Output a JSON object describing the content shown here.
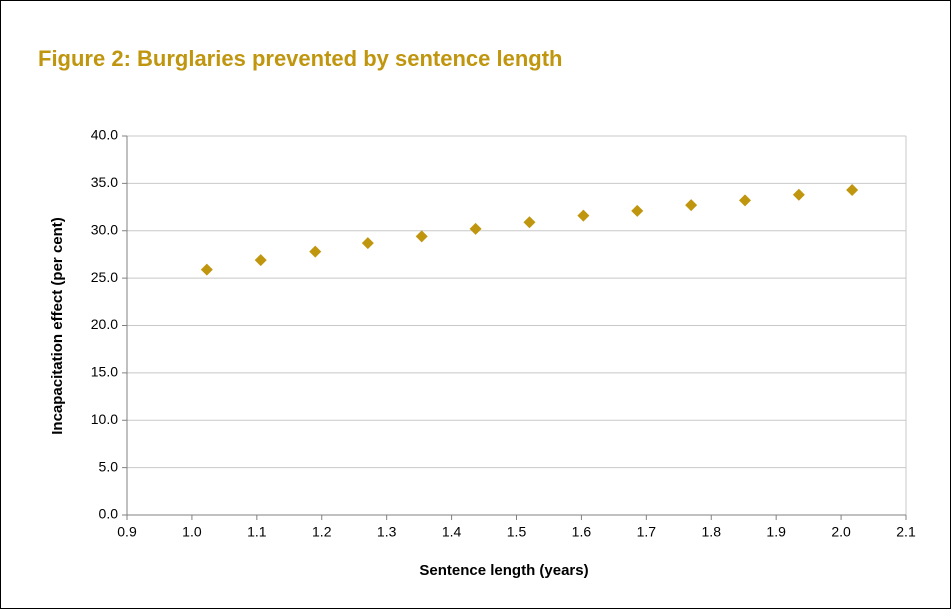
{
  "chart_data": {
    "type": "scatter",
    "title": "Figure 2: Burglaries prevented by sentence length",
    "x_label": "Sentence length (years)",
    "y_label": "Incapacitation effect (per cent)",
    "color": "#c0960f",
    "grid": true,
    "x": [
      1.023,
      1.106,
      1.19,
      1.271,
      1.354,
      1.437,
      1.52,
      1.603,
      1.686,
      1.769,
      1.852,
      1.935,
      2.017
    ],
    "values": [
      25.9,
      26.9,
      27.8,
      28.7,
      29.4,
      30.2,
      30.9,
      31.6,
      32.1,
      32.7,
      33.2,
      33.8,
      34.3
    ],
    "xlim": [
      0.9,
      2.1
    ],
    "xticks": [
      0.9,
      {
        "value": 1,
        "label": "1.0"
      },
      1.1,
      1.2,
      1.3,
      1.4,
      1.5,
      1.6,
      1.7,
      1.8,
      1.9,
      {
        "value": 2,
        "label": "2.0"
      },
      2.1
    ],
    "ylim": [
      0,
      40
    ],
    "yticks": [
      {
        "value": 0,
        "label": "0.0"
      },
      {
        "value": 5,
        "label": "5.0"
      },
      {
        "value": 10,
        "label": "10.0"
      },
      {
        "value": 15,
        "label": "15.0"
      },
      {
        "value": 20,
        "label": "20.0"
      },
      {
        "value": 25,
        "label": "25.0"
      },
      {
        "value": 30,
        "label": "30.0"
      },
      {
        "value": 35,
        "label": "35.0"
      },
      {
        "value": 40,
        "label": "40.0"
      }
    ]
  }
}
